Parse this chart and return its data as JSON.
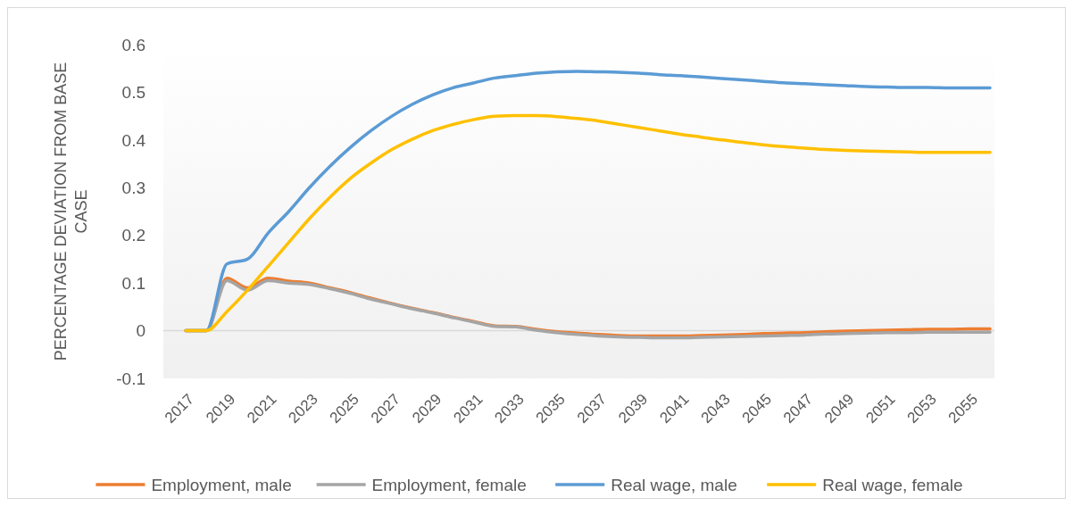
{
  "chart_data": {
    "type": "line",
    "ylabel": "PERCENTAGE DEVIATION FROM BASE CASE",
    "categories": [
      "2017",
      null,
      "2019",
      null,
      "2021",
      null,
      "2023",
      null,
      "2025",
      null,
      "2027",
      null,
      "2029",
      null,
      "2031",
      null,
      "2033",
      null,
      "2035",
      null,
      "2037",
      null,
      "2039",
      null,
      "2041",
      null,
      "2043",
      null,
      "2045",
      null,
      "2047",
      null,
      "2049",
      null,
      "2051",
      null,
      "2053",
      null,
      "2055",
      null
    ],
    "series": [
      {
        "name": "Employment, male",
        "color": "#ed7d31",
        "values": [
          0,
          0,
          0.11,
          0.09,
          0.11,
          0.104,
          0.1,
          0.09,
          0.08,
          0.068,
          0.057,
          0.047,
          0.038,
          0.028,
          0.019,
          0.01,
          0.009,
          0.003,
          -0.002,
          -0.005,
          -0.008,
          -0.01,
          -0.011,
          -0.011,
          -0.011,
          -0.01,
          -0.009,
          -0.008,
          -0.006,
          -0.005,
          -0.004,
          -0.002,
          -0.001,
          0,
          0.001,
          0.002,
          0.003,
          0.003,
          0.004,
          0.004
        ]
      },
      {
        "name": "Employment, female",
        "color": "#a5a5a5",
        "values": [
          0,
          0,
          0.105,
          0.085,
          0.105,
          0.1,
          0.097,
          0.088,
          0.078,
          0.066,
          0.056,
          0.046,
          0.037,
          0.027,
          0.018,
          0.009,
          0.008,
          0.001,
          -0.004,
          -0.008,
          -0.011,
          -0.013,
          -0.014,
          -0.015,
          -0.015,
          -0.014,
          -0.013,
          -0.012,
          -0.011,
          -0.01,
          -0.009,
          -0.007,
          -0.006,
          -0.005,
          -0.004,
          -0.004,
          -0.003,
          -0.003,
          -0.003,
          -0.003
        ]
      },
      {
        "name": "Real wage, male",
        "color": "#5b9bd5",
        "values": [
          0,
          0,
          0.14,
          0.15,
          0.205,
          0.25,
          0.3,
          0.345,
          0.385,
          0.42,
          0.45,
          0.475,
          0.495,
          0.51,
          0.52,
          0.53,
          0.535,
          0.54,
          0.543,
          0.544,
          0.543,
          0.542,
          0.54,
          0.537,
          0.535,
          0.532,
          0.529,
          0.526,
          0.523,
          0.52,
          0.518,
          0.516,
          0.514,
          0.512,
          0.511,
          0.51,
          0.51,
          0.509,
          0.509,
          0.509
        ]
      },
      {
        "name": "Real wage, female",
        "color": "#ffc000",
        "values": [
          0,
          0,
          0.04,
          0.085,
          0.135,
          0.185,
          0.235,
          0.28,
          0.32,
          0.352,
          0.38,
          0.402,
          0.42,
          0.433,
          0.443,
          0.45,
          0.451,
          0.451,
          0.449,
          0.445,
          0.44,
          0.433,
          0.426,
          0.419,
          0.412,
          0.406,
          0.4,
          0.395,
          0.39,
          0.386,
          0.383,
          0.38,
          0.378,
          0.377,
          0.376,
          0.375,
          0.374,
          0.374,
          0.374,
          0.374
        ]
      }
    ],
    "ylim": [
      -0.1,
      0.6
    ],
    "yticks": [
      -0.1,
      0,
      0.1,
      0.2,
      0.3,
      0.4,
      0.5,
      0.6
    ],
    "legend": "bottom"
  }
}
